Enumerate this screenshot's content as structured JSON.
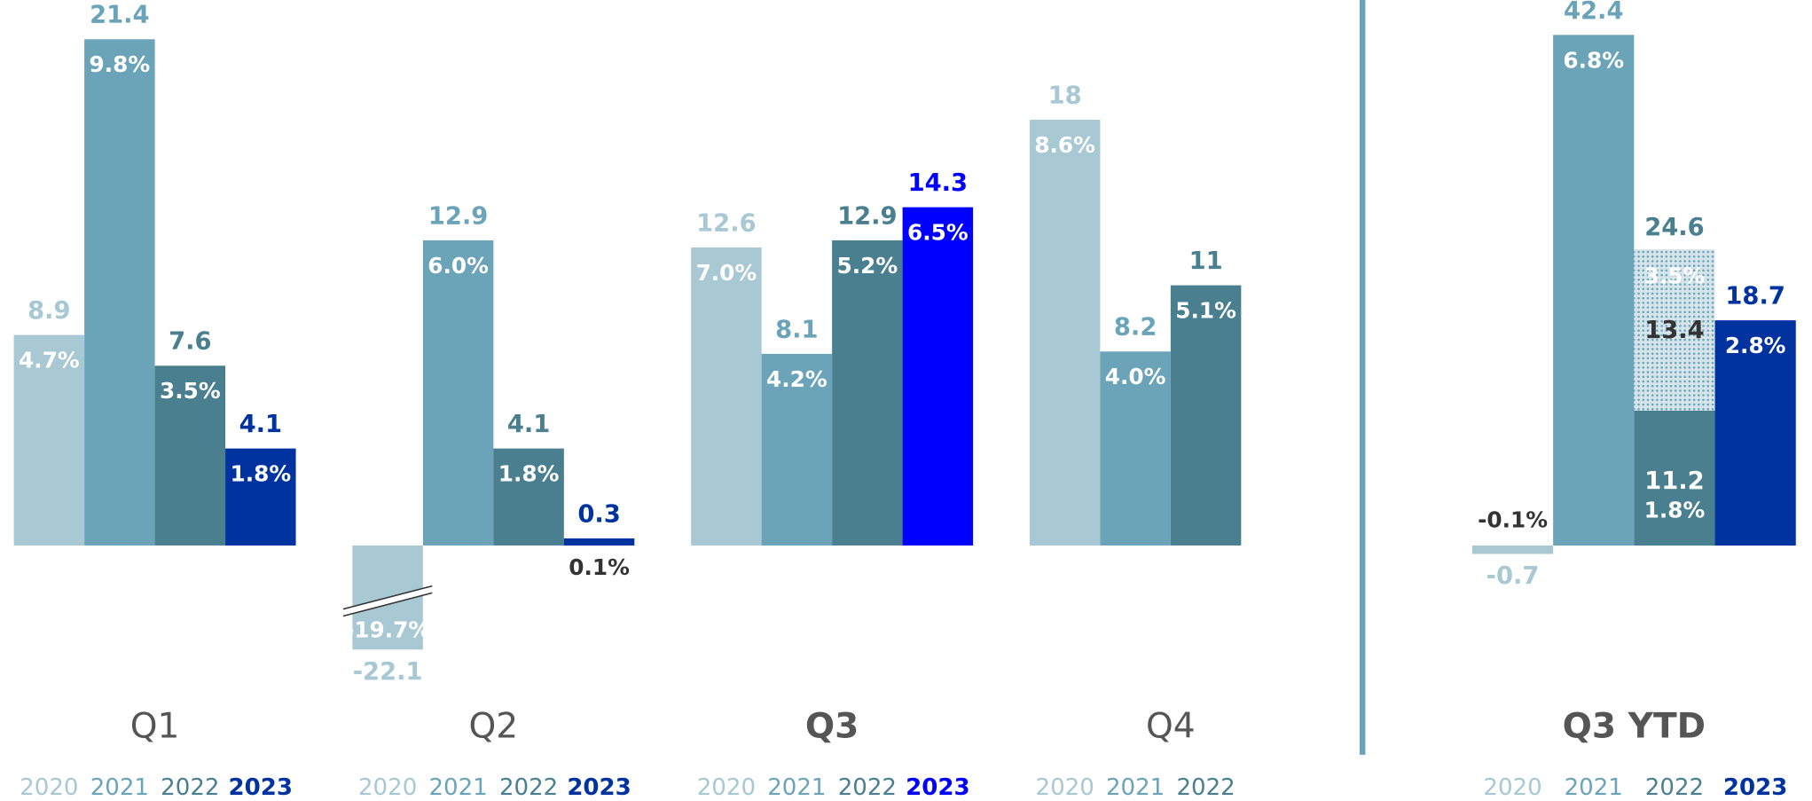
{
  "chart_data": [
    {
      "type": "bar",
      "categories": [
        "Q1",
        "Q2",
        "Q3",
        "Q4"
      ],
      "highlight": 2,
      "axis_break": true,
      "ylim": [
        -4.4,
        23
      ],
      "series": [
        {
          "name": "2020",
          "color": "#a8c8d4",
          "values": [
            8.9,
            -22.1,
            12.6,
            18.0
          ],
          "pct_labels": [
            "4.7%",
            "-19.7%",
            "7.0%",
            "8.6%"
          ]
        },
        {
          "name": "2021",
          "color": "#6ba4b8",
          "values": [
            21.4,
            12.9,
            8.1,
            8.2
          ],
          "pct_labels": [
            "9.8%",
            "6.0%",
            "4.2%",
            "4.0%"
          ]
        },
        {
          "name": "2022",
          "color": "#4a7f90",
          "values": [
            7.6,
            4.1,
            12.9,
            11.0
          ],
          "pct_labels": [
            "3.5%",
            "1.8%",
            "5.2%",
            "5.1%"
          ]
        },
        {
          "name": "2023",
          "color": "#0033a0",
          "colors": [
            "#0033a0",
            "#0033a0",
            "#0000ff",
            null
          ],
          "values": [
            4.1,
            0.3,
            14.3,
            null
          ],
          "pct_labels": [
            "1.8%",
            "0.1%",
            "6.5%",
            null
          ]
        }
      ]
    },
    {
      "type": "bar",
      "categories": [
        "Q3 YTD"
      ],
      "highlight": 0,
      "ylim": [
        -1,
        44
      ],
      "series": [
        {
          "name": "2020",
          "color": "#a8c8d4",
          "values": [
            -0.7
          ],
          "pct_labels": [
            "-0.1%"
          ]
        },
        {
          "name": "2021",
          "color": "#6ba4b8",
          "values": [
            42.4
          ],
          "pct_labels": [
            "6.8%"
          ]
        },
        {
          "name": "2022",
          "color": "#4a7f90",
          "values": [
            24.6
          ],
          "pct_labels": [
            null
          ],
          "segments": [
            [
              {
                "value": 11.2,
                "pct_label": "1.8%"
              },
              {
                "value": 13.4,
                "pct_label": "3.5%",
                "pattern": "dots"
              }
            ]
          ]
        },
        {
          "name": "2023",
          "color": "#0033a0",
          "values": [
            18.7
          ],
          "pct_labels": [
            "2.8%"
          ]
        }
      ]
    }
  ]
}
